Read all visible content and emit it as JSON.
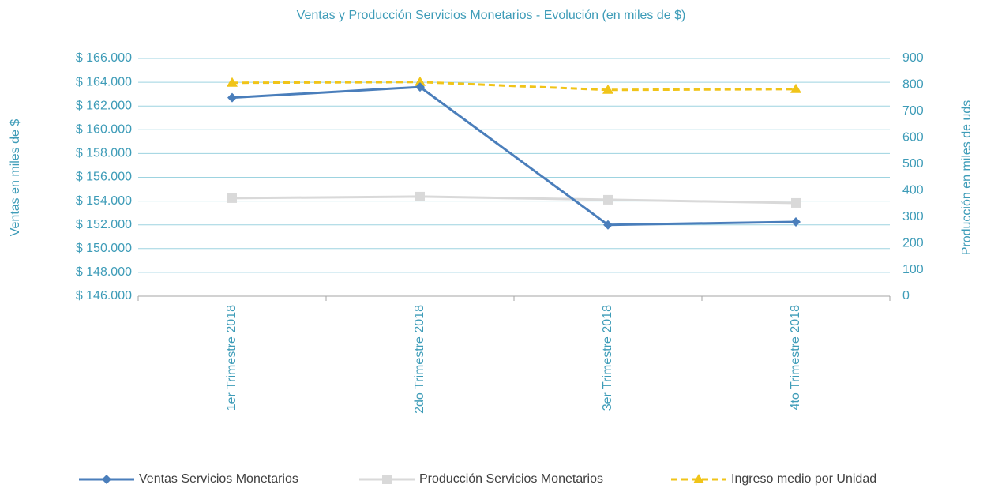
{
  "chart_data": {
    "type": "line",
    "title": "Ventas y Producción Servicios Monetarios - Evolución (en miles de $)",
    "y_label": "Ventas en miles de $",
    "y2_label": "Producción en miles de uds",
    "categories": [
      "1er Trimestre 2018",
      "2do Trimestre 2018",
      "3er Trimestre 2018",
      "4to Trimestre 2018"
    ],
    "series": [
      {
        "name": "Ventas Servicios Monetarios",
        "color": "#4a7ebb",
        "marker": "diamond",
        "line_style": "solid",
        "values": [
          162700,
          163600,
          152000,
          152250
        ]
      },
      {
        "name": "Producción Servicios Monetarios",
        "color": "#d9d9d9",
        "marker": "square",
        "line_style": "solid",
        "axis": "y2",
        "values": [
          371,
          377,
          365,
          353
        ]
      },
      {
        "name": "Ingreso medio por Unidad",
        "color": "#f0c419",
        "marker": "triangle",
        "line_style": "dashed",
        "axis": "y2",
        "values": [
          808,
          811,
          781,
          784
        ]
      }
    ],
    "ylim": [
      146000,
      166000
    ],
    "yticks": [
      {
        "value": 146000,
        "label": "$ 146.000"
      },
      {
        "value": 148000,
        "label": "$ 148.000"
      },
      {
        "value": 150000,
        "label": "$ 150.000"
      },
      {
        "value": 152000,
        "label": "$ 152.000"
      },
      {
        "value": 154000,
        "label": "$ 154.000"
      },
      {
        "value": 156000,
        "label": "$ 156.000"
      },
      {
        "value": 158000,
        "label": "$ 158.000"
      },
      {
        "value": 160000,
        "label": "$ 160.000"
      },
      {
        "value": 162000,
        "label": "$ 162.000"
      },
      {
        "value": 164000,
        "label": "$ 164.000"
      },
      {
        "value": 166000,
        "label": "$ 166.000"
      }
    ],
    "y2lim": [
      0,
      900
    ],
    "y2ticks": [
      0,
      100,
      200,
      300,
      400,
      500,
      600,
      700,
      800,
      900
    ],
    "grid": true,
    "legend": "bottom"
  }
}
